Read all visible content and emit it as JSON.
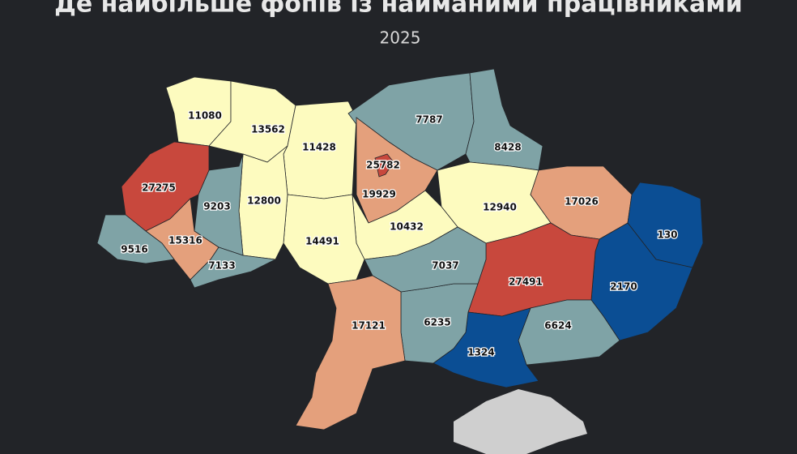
{
  "title": "Де найбільше фопів із найманими працівниками",
  "subtitle": "2025",
  "regions": [
    {
      "value": 11080,
      "color": "#fdfbbf"
    },
    {
      "value": 13562,
      "color": "#fdfbbf"
    },
    {
      "value": 11428,
      "color": "#fdfbbf"
    },
    {
      "value": 7787,
      "color": "#7fa3a6"
    },
    {
      "value": 8428,
      "color": "#7fa3a6"
    },
    {
      "value": 19929,
      "color": "#e4a07c"
    },
    {
      "value": 25782,
      "color": "#c8483d"
    },
    {
      "value": 12940,
      "color": "#fdfbbf"
    },
    {
      "value": 17026,
      "color": "#e4a07c"
    },
    {
      "value": 130,
      "color": "#0b4e94"
    },
    {
      "value": 2170,
      "color": "#0b4e94"
    },
    {
      "value": 27491,
      "color": "#c8483d"
    },
    {
      "value": 6624,
      "color": "#7fa3a6"
    },
    {
      "value": 1324,
      "color": "#0b4e94"
    },
    {
      "value": 6235,
      "color": "#7fa3a6"
    },
    {
      "value": 10432,
      "color": "#fdfbbf"
    },
    {
      "value": 7037,
      "color": "#7fa3a6"
    },
    {
      "value": 14491,
      "color": "#fdfbbf"
    },
    {
      "value": 17121,
      "color": "#e4a07c"
    },
    {
      "value": 12800,
      "color": "#fdfbbf"
    },
    {
      "value": 9203,
      "color": "#7fa3a6"
    },
    {
      "value": 27275,
      "color": "#c8483d"
    },
    {
      "value": 15316,
      "color": "#e4a07c"
    },
    {
      "value": 7133,
      "color": "#7fa3a6"
    },
    {
      "value": 9516,
      "color": "#7fa3a6"
    }
  ]
}
